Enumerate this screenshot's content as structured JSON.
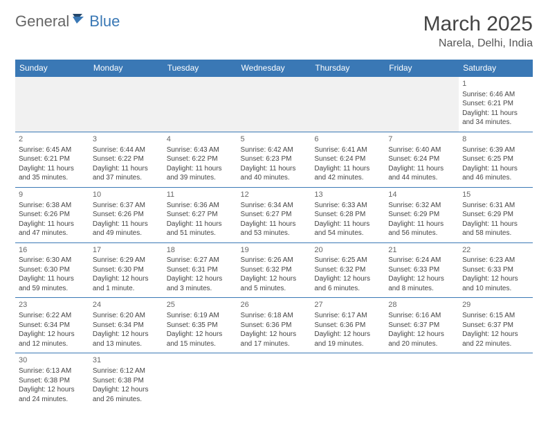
{
  "logo": {
    "general": "General",
    "blue": "Blue"
  },
  "title": "March 2025",
  "location": "Narela, Delhi, India",
  "colors": {
    "header_bg": "#3a78b5",
    "header_text": "#ffffff",
    "border": "#3a78b5",
    "text": "#444444",
    "daynum": "#666666",
    "blank_bg": "#f1f1f1"
  },
  "weekdays": [
    "Sunday",
    "Monday",
    "Tuesday",
    "Wednesday",
    "Thursday",
    "Friday",
    "Saturday"
  ],
  "weeks": [
    [
      null,
      null,
      null,
      null,
      null,
      null,
      {
        "n": "1",
        "sr": "Sunrise: 6:46 AM",
        "ss": "Sunset: 6:21 PM",
        "dl": "Daylight: 11 hours and 34 minutes."
      }
    ],
    [
      {
        "n": "2",
        "sr": "Sunrise: 6:45 AM",
        "ss": "Sunset: 6:21 PM",
        "dl": "Daylight: 11 hours and 35 minutes."
      },
      {
        "n": "3",
        "sr": "Sunrise: 6:44 AM",
        "ss": "Sunset: 6:22 PM",
        "dl": "Daylight: 11 hours and 37 minutes."
      },
      {
        "n": "4",
        "sr": "Sunrise: 6:43 AM",
        "ss": "Sunset: 6:22 PM",
        "dl": "Daylight: 11 hours and 39 minutes."
      },
      {
        "n": "5",
        "sr": "Sunrise: 6:42 AM",
        "ss": "Sunset: 6:23 PM",
        "dl": "Daylight: 11 hours and 40 minutes."
      },
      {
        "n": "6",
        "sr": "Sunrise: 6:41 AM",
        "ss": "Sunset: 6:24 PM",
        "dl": "Daylight: 11 hours and 42 minutes."
      },
      {
        "n": "7",
        "sr": "Sunrise: 6:40 AM",
        "ss": "Sunset: 6:24 PM",
        "dl": "Daylight: 11 hours and 44 minutes."
      },
      {
        "n": "8",
        "sr": "Sunrise: 6:39 AM",
        "ss": "Sunset: 6:25 PM",
        "dl": "Daylight: 11 hours and 46 minutes."
      }
    ],
    [
      {
        "n": "9",
        "sr": "Sunrise: 6:38 AM",
        "ss": "Sunset: 6:26 PM",
        "dl": "Daylight: 11 hours and 47 minutes."
      },
      {
        "n": "10",
        "sr": "Sunrise: 6:37 AM",
        "ss": "Sunset: 6:26 PM",
        "dl": "Daylight: 11 hours and 49 minutes."
      },
      {
        "n": "11",
        "sr": "Sunrise: 6:36 AM",
        "ss": "Sunset: 6:27 PM",
        "dl": "Daylight: 11 hours and 51 minutes."
      },
      {
        "n": "12",
        "sr": "Sunrise: 6:34 AM",
        "ss": "Sunset: 6:27 PM",
        "dl": "Daylight: 11 hours and 53 minutes."
      },
      {
        "n": "13",
        "sr": "Sunrise: 6:33 AM",
        "ss": "Sunset: 6:28 PM",
        "dl": "Daylight: 11 hours and 54 minutes."
      },
      {
        "n": "14",
        "sr": "Sunrise: 6:32 AM",
        "ss": "Sunset: 6:29 PM",
        "dl": "Daylight: 11 hours and 56 minutes."
      },
      {
        "n": "15",
        "sr": "Sunrise: 6:31 AM",
        "ss": "Sunset: 6:29 PM",
        "dl": "Daylight: 11 hours and 58 minutes."
      }
    ],
    [
      {
        "n": "16",
        "sr": "Sunrise: 6:30 AM",
        "ss": "Sunset: 6:30 PM",
        "dl": "Daylight: 11 hours and 59 minutes."
      },
      {
        "n": "17",
        "sr": "Sunrise: 6:29 AM",
        "ss": "Sunset: 6:30 PM",
        "dl": "Daylight: 12 hours and 1 minute."
      },
      {
        "n": "18",
        "sr": "Sunrise: 6:27 AM",
        "ss": "Sunset: 6:31 PM",
        "dl": "Daylight: 12 hours and 3 minutes."
      },
      {
        "n": "19",
        "sr": "Sunrise: 6:26 AM",
        "ss": "Sunset: 6:32 PM",
        "dl": "Daylight: 12 hours and 5 minutes."
      },
      {
        "n": "20",
        "sr": "Sunrise: 6:25 AM",
        "ss": "Sunset: 6:32 PM",
        "dl": "Daylight: 12 hours and 6 minutes."
      },
      {
        "n": "21",
        "sr": "Sunrise: 6:24 AM",
        "ss": "Sunset: 6:33 PM",
        "dl": "Daylight: 12 hours and 8 minutes."
      },
      {
        "n": "22",
        "sr": "Sunrise: 6:23 AM",
        "ss": "Sunset: 6:33 PM",
        "dl": "Daylight: 12 hours and 10 minutes."
      }
    ],
    [
      {
        "n": "23",
        "sr": "Sunrise: 6:22 AM",
        "ss": "Sunset: 6:34 PM",
        "dl": "Daylight: 12 hours and 12 minutes."
      },
      {
        "n": "24",
        "sr": "Sunrise: 6:20 AM",
        "ss": "Sunset: 6:34 PM",
        "dl": "Daylight: 12 hours and 13 minutes."
      },
      {
        "n": "25",
        "sr": "Sunrise: 6:19 AM",
        "ss": "Sunset: 6:35 PM",
        "dl": "Daylight: 12 hours and 15 minutes."
      },
      {
        "n": "26",
        "sr": "Sunrise: 6:18 AM",
        "ss": "Sunset: 6:36 PM",
        "dl": "Daylight: 12 hours and 17 minutes."
      },
      {
        "n": "27",
        "sr": "Sunrise: 6:17 AM",
        "ss": "Sunset: 6:36 PM",
        "dl": "Daylight: 12 hours and 19 minutes."
      },
      {
        "n": "28",
        "sr": "Sunrise: 6:16 AM",
        "ss": "Sunset: 6:37 PM",
        "dl": "Daylight: 12 hours and 20 minutes."
      },
      {
        "n": "29",
        "sr": "Sunrise: 6:15 AM",
        "ss": "Sunset: 6:37 PM",
        "dl": "Daylight: 12 hours and 22 minutes."
      }
    ],
    [
      {
        "n": "30",
        "sr": "Sunrise: 6:13 AM",
        "ss": "Sunset: 6:38 PM",
        "dl": "Daylight: 12 hours and 24 minutes."
      },
      {
        "n": "31",
        "sr": "Sunrise: 6:12 AM",
        "ss": "Sunset: 6:38 PM",
        "dl": "Daylight: 12 hours and 26 minutes."
      },
      null,
      null,
      null,
      null,
      null
    ]
  ]
}
